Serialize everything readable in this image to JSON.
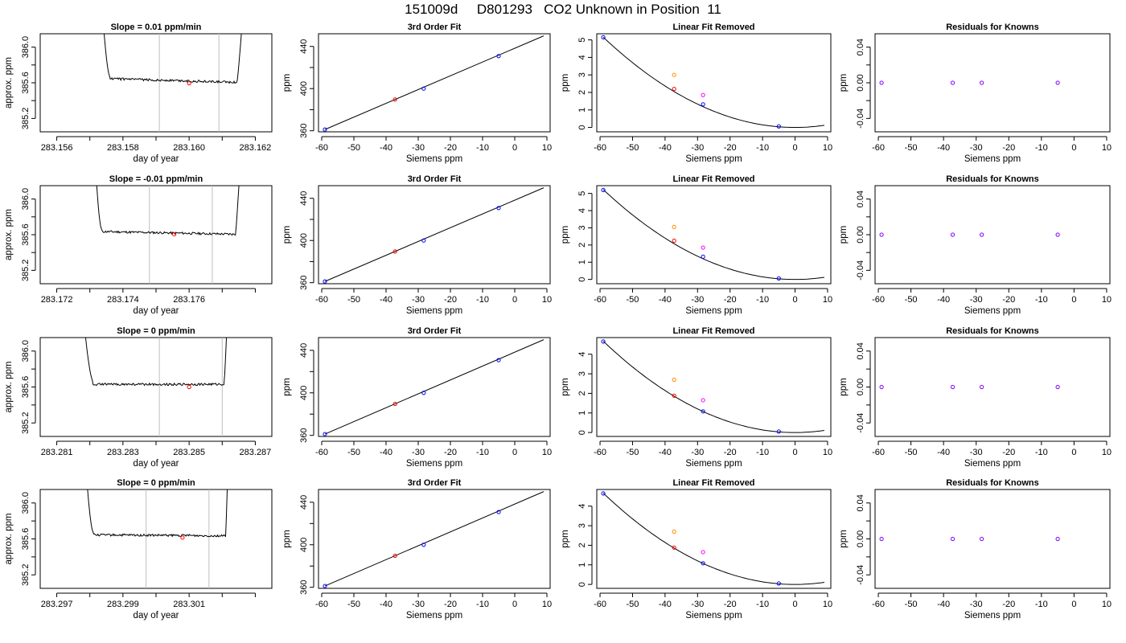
{
  "page_title": "151009d     D801293   CO2 Unknown in Position  11",
  "colors": {
    "trace": "#000000",
    "cut_lines": "#bebebe",
    "average_point": "#ff0000",
    "known_points": "#0000ff",
    "unknown_point": "#ff00ff",
    "raw_point": "#ff8c00",
    "residual_points": "#8000ff"
  },
  "chart_data": [
    {
      "type": "line",
      "panel": "trace-row-1",
      "title": "Slope =  0.01  ppm/min",
      "xlabel": "day of year",
      "ylabel": "approx. ppm",
      "xlim": [
        283.1555,
        283.1625
      ],
      "ylim": [
        385.05,
        386.15
      ],
      "xticks": [
        283.156,
        283.157,
        283.158,
        283.159,
        283.16,
        283.161,
        283.162
      ],
      "xtick_labels": [
        "283.156",
        "",
        "283.158",
        "",
        "283.160",
        "",
        "283.162"
      ],
      "yticks": [
        385.2,
        385.4,
        385.6,
        385.8,
        386.0
      ],
      "ytick_labels": [
        "385.2",
        "",
        "385.6",
        "",
        "386.0"
      ],
      "start": 283.1573,
      "end": 283.1617,
      "plateau_start": 283.1576,
      "plateau_end": 283.16145,
      "level": 385.615,
      "drift": -0.04,
      "cut_lines_x": [
        283.1591,
        283.1609
      ],
      "average_point": {
        "x": 283.16,
        "y": 385.595
      }
    },
    {
      "type": "line",
      "panel": "trace-row-2",
      "title": "Slope =  -0.01  ppm/min",
      "xlabel": "day of year",
      "ylabel": "approx. ppm",
      "xlim": [
        283.1715,
        283.1785
      ],
      "ylim": [
        385.05,
        386.15
      ],
      "xticks": [
        283.172,
        283.173,
        283.174,
        283.175,
        283.176,
        283.177,
        283.178
      ],
      "xtick_labels": [
        "283.172",
        "",
        "283.174",
        "",
        "283.176",
        "",
        ""
      ],
      "yticks": [
        385.2,
        385.4,
        385.6,
        385.8,
        386.0
      ],
      "ytick_labels": [
        "385.2",
        "",
        "385.6",
        "",
        "386.0"
      ],
      "start": 283.1731,
      "end": 283.1776,
      "plateau_start": 283.17335,
      "plateau_end": 283.1774,
      "level": 385.605,
      "drift": -0.03,
      "cut_lines_x": [
        283.1748,
        283.1767
      ],
      "average_point": {
        "x": 283.17555,
        "y": 385.605
      }
    },
    {
      "type": "line",
      "panel": "trace-row-3",
      "title": "Slope =  0  ppm/min",
      "xlabel": "day of year",
      "ylabel": "approx. ppm",
      "xlim": [
        283.2805,
        283.2875
      ],
      "ylim": [
        385.05,
        386.15
      ],
      "xticks": [
        283.281,
        283.282,
        283.283,
        283.284,
        283.285,
        283.286,
        283.287
      ],
      "xtick_labels": [
        "283.281",
        "",
        "283.283",
        "",
        "283.285",
        "",
        "283.287"
      ],
      "yticks": [
        385.2,
        385.4,
        385.6,
        385.8,
        386.0
      ],
      "ytick_labels": [
        "385.2",
        "",
        "385.6",
        "",
        "386.0"
      ],
      "start": 283.2817,
      "end": 283.2862,
      "plateau_start": 283.2821,
      "plateau_end": 283.28605,
      "level": 385.6,
      "drift": 0.0,
      "cut_lines_x": [
        283.2841,
        283.286
      ],
      "average_point": {
        "x": 283.285,
        "y": 385.6
      }
    },
    {
      "type": "line",
      "panel": "trace-row-4",
      "title": "Slope =  0  ppm/min",
      "xlabel": "day of year",
      "ylabel": "approx. ppm",
      "xlim": [
        283.2965,
        283.3035
      ],
      "ylim": [
        385.05,
        386.15
      ],
      "xticks": [
        283.297,
        283.298,
        283.299,
        283.3,
        283.301,
        283.302,
        283.303
      ],
      "xtick_labels": [
        "283.297",
        "",
        "283.299",
        "",
        "283.301",
        "",
        ""
      ],
      "yticks": [
        385.2,
        385.4,
        385.6,
        385.8,
        386.0
      ],
      "ytick_labels": [
        "385.2",
        "",
        "385.6",
        "",
        "386.0"
      ],
      "start": 283.2978,
      "end": 283.3022,
      "plateau_start": 283.2981,
      "plateau_end": 283.3021,
      "level": 385.615,
      "drift": -0.01,
      "cut_lines_x": [
        283.2997,
        283.3016
      ],
      "average_point": {
        "x": 283.3008,
        "y": 385.615
      }
    },
    {
      "type": "scatter",
      "panel": "fit-row-1",
      "title": "3rd Order Fit",
      "xlabel": "Siemens ppm",
      "ylabel": "ppm",
      "xlim": [
        -61,
        11
      ],
      "ylim": [
        359,
        452
      ],
      "xticks": [
        -60,
        -50,
        -40,
        -30,
        -20,
        -10,
        0,
        10
      ],
      "xtick_labels": [
        "-60",
        "-50",
        "-40",
        "-30",
        "-20",
        "-10",
        "0",
        "10"
      ],
      "yticks": [
        360,
        380,
        400,
        420,
        440
      ],
      "ytick_labels": [
        "360",
        "",
        "400",
        "",
        "440"
      ],
      "fit_line": {
        "x": [
          -59,
          9
        ],
        "y": [
          361.2,
          450.0
        ]
      },
      "known_points": [
        {
          "x": -59,
          "y": 361.2
        },
        {
          "x": -28.3,
          "y": 400.0
        },
        {
          "x": -5,
          "y": 430.8
        }
      ],
      "unknown_point": {
        "x": -37.2,
        "y": 389.7
      }
    },
    {
      "type": "scatter",
      "panel": "fit-row-2",
      "title": "3rd Order Fit",
      "xlabel": "Siemens ppm",
      "ylabel": "ppm",
      "xlim": [
        -61,
        11
      ],
      "ylim": [
        359,
        452
      ],
      "xticks": [
        -60,
        -50,
        -40,
        -30,
        -20,
        -10,
        0,
        10
      ],
      "xtick_labels": [
        "-60",
        "-50",
        "-40",
        "-30",
        "-20",
        "-10",
        "0",
        "10"
      ],
      "yticks": [
        360,
        380,
        400,
        420,
        440
      ],
      "ytick_labels": [
        "360",
        "",
        "400",
        "",
        "440"
      ],
      "fit_line": {
        "x": [
          -59,
          9
        ],
        "y": [
          361.2,
          450.0
        ]
      },
      "known_points": [
        {
          "x": -59,
          "y": 361.2
        },
        {
          "x": -28.3,
          "y": 400.0
        },
        {
          "x": -5,
          "y": 430.8
        }
      ],
      "unknown_point": {
        "x": -37.2,
        "y": 389.6
      }
    },
    {
      "type": "scatter",
      "panel": "fit-row-3",
      "title": "3rd Order Fit",
      "xlabel": "Siemens ppm",
      "ylabel": "ppm",
      "xlim": [
        -61,
        11
      ],
      "ylim": [
        359,
        452
      ],
      "xticks": [
        -60,
        -50,
        -40,
        -30,
        -20,
        -10,
        0,
        10
      ],
      "xtick_labels": [
        "-60",
        "-50",
        "-40",
        "-30",
        "-20",
        "-10",
        "0",
        "10"
      ],
      "yticks": [
        360,
        380,
        400,
        420,
        440
      ],
      "ytick_labels": [
        "360",
        "",
        "400",
        "",
        "440"
      ],
      "fit_line": {
        "x": [
          -59,
          9
        ],
        "y": [
          361.2,
          450.0
        ]
      },
      "known_points": [
        {
          "x": -59,
          "y": 361.2
        },
        {
          "x": -28.3,
          "y": 400.0
        },
        {
          "x": -5,
          "y": 430.8
        }
      ],
      "unknown_point": {
        "x": -37.2,
        "y": 389.6
      }
    },
    {
      "type": "scatter",
      "panel": "fit-row-4",
      "title": "3rd Order Fit",
      "xlabel": "Siemens ppm",
      "ylabel": "ppm",
      "xlim": [
        -61,
        11
      ],
      "ylim": [
        359,
        452
      ],
      "xticks": [
        -60,
        -50,
        -40,
        -30,
        -20,
        -10,
        0,
        10
      ],
      "xtick_labels": [
        "-60",
        "-50",
        "-40",
        "-30",
        "-20",
        "-10",
        "0",
        "10"
      ],
      "yticks": [
        360,
        380,
        400,
        420,
        440
      ],
      "ytick_labels": [
        "360",
        "",
        "400",
        "",
        "440"
      ],
      "fit_line": {
        "x": [
          -59,
          9
        ],
        "y": [
          361.2,
          450.0
        ]
      },
      "known_points": [
        {
          "x": -59,
          "y": 361.2
        },
        {
          "x": -28.3,
          "y": 400.0
        },
        {
          "x": -5,
          "y": 430.8
        }
      ],
      "unknown_point": {
        "x": -37.2,
        "y": 389.6
      }
    },
    {
      "type": "scatter",
      "panel": "linear-removed-row-1",
      "title": "Linear Fit Removed",
      "xlabel": "Siemens ppm",
      "ylabel": "ppm",
      "xlim": [
        -61,
        11
      ],
      "ylim": [
        -0.25,
        5.35
      ],
      "xticks": [
        -60,
        -50,
        -40,
        -30,
        -20,
        -10,
        0,
        10
      ],
      "xtick_labels": [
        "-60",
        "-50",
        "-40",
        "-30",
        "-20",
        "-10",
        "0",
        "10"
      ],
      "yticks": [
        0,
        1,
        2,
        3,
        4,
        5
      ],
      "ytick_labels": [
        "0",
        "1",
        "2",
        "3",
        "4",
        "5"
      ],
      "curve": {
        "vertex_x": 0,
        "vertex_y": 0.0,
        "a": 0.00148,
        "x_from": -59,
        "x_to": 9
      },
      "known_points": [
        {
          "x": -59,
          "y": 5.15
        },
        {
          "x": -28.3,
          "y": 1.32
        },
        {
          "x": -5,
          "y": 0.06
        }
      ],
      "unknown_point": {
        "x": -37.2,
        "y": 2.2
      },
      "raw_unknown": {
        "x": -37.2,
        "y": 3.0
      },
      "raw_unknown_2": {
        "x": -28.3,
        "y": 1.85
      }
    },
    {
      "type": "scatter",
      "panel": "linear-removed-row-2",
      "title": "Linear Fit Removed",
      "xlabel": "Siemens ppm",
      "ylabel": "ppm",
      "xlim": [
        -61,
        11
      ],
      "ylim": [
        -0.25,
        5.45
      ],
      "xticks": [
        -60,
        -50,
        -40,
        -30,
        -20,
        -10,
        0,
        10
      ],
      "xtick_labels": [
        "-60",
        "-50",
        "-40",
        "-30",
        "-20",
        "-10",
        "0",
        "10"
      ],
      "yticks": [
        0,
        1,
        2,
        3,
        4,
        5
      ],
      "ytick_labels": [
        "0",
        "1",
        "2",
        "3",
        "4",
        "5"
      ],
      "curve": {
        "vertex_x": 0,
        "vertex_y": 0.0,
        "a": 0.0015,
        "x_from": -59,
        "x_to": 9
      },
      "known_points": [
        {
          "x": -59,
          "y": 5.2
        },
        {
          "x": -28.3,
          "y": 1.32
        },
        {
          "x": -5,
          "y": 0.06
        }
      ],
      "unknown_point": {
        "x": -37.2,
        "y": 2.25
      },
      "raw_unknown": {
        "x": -37.2,
        "y": 3.05
      },
      "raw_unknown_2": {
        "x": -28.3,
        "y": 1.85
      }
    },
    {
      "type": "scatter",
      "panel": "linear-removed-row-3",
      "title": "Linear Fit Removed",
      "xlabel": "Siemens ppm",
      "ylabel": "ppm",
      "xlim": [
        -61,
        11
      ],
      "ylim": [
        -0.2,
        4.85
      ],
      "xticks": [
        -60,
        -50,
        -40,
        -30,
        -20,
        -10,
        0,
        10
      ],
      "xtick_labels": [
        "-60",
        "-50",
        "-40",
        "-30",
        "-20",
        "-10",
        "0",
        "10"
      ],
      "yticks": [
        0,
        1,
        2,
        3,
        4
      ],
      "ytick_labels": [
        "0",
        "1",
        "2",
        "3",
        "4"
      ],
      "curve": {
        "vertex_x": 0,
        "vertex_y": 0.0,
        "a": 0.00134,
        "x_from": -59,
        "x_to": 9
      },
      "known_points": [
        {
          "x": -59,
          "y": 4.65
        },
        {
          "x": -28.3,
          "y": 1.08
        },
        {
          "x": -5,
          "y": 0.05
        }
      ],
      "unknown_point": {
        "x": -37.2,
        "y": 1.88
      },
      "raw_unknown": {
        "x": -37.2,
        "y": 2.7
      },
      "raw_unknown_2": {
        "x": -28.3,
        "y": 1.65
      }
    },
    {
      "type": "scatter",
      "panel": "linear-removed-row-4",
      "title": "Linear Fit Removed",
      "xlabel": "Siemens ppm",
      "ylabel": "ppm",
      "xlim": [
        -61,
        11
      ],
      "ylim": [
        -0.2,
        4.85
      ],
      "xticks": [
        -60,
        -50,
        -40,
        -30,
        -20,
        -10,
        0,
        10
      ],
      "xtick_labels": [
        "-60",
        "-50",
        "-40",
        "-30",
        "-20",
        "-10",
        "0",
        "10"
      ],
      "yticks": [
        0,
        1,
        2,
        3,
        4
      ],
      "ytick_labels": [
        "0",
        "1",
        "2",
        "3",
        "4"
      ],
      "curve": {
        "vertex_x": 0,
        "vertex_y": 0.0,
        "a": 0.00134,
        "x_from": -59,
        "x_to": 9
      },
      "known_points": [
        {
          "x": -59,
          "y": 4.65
        },
        {
          "x": -28.3,
          "y": 1.08
        },
        {
          "x": -5,
          "y": 0.05
        }
      ],
      "unknown_point": {
        "x": -37.2,
        "y": 1.88
      },
      "raw_unknown": {
        "x": -37.2,
        "y": 2.7
      },
      "raw_unknown_2": {
        "x": -28.3,
        "y": 1.65
      }
    },
    {
      "type": "scatter",
      "panel": "residuals-row-1",
      "title": "Residuals for Knowns",
      "xlabel": "Siemens ppm",
      "ylabel": "ppm",
      "xlim": [
        -61,
        11
      ],
      "ylim": [
        -0.055,
        0.055
      ],
      "xticks": [
        -60,
        -50,
        -40,
        -30,
        -20,
        -10,
        0,
        10
      ],
      "xtick_labels": [
        "-60",
        "-50",
        "-40",
        "-30",
        "-20",
        "-10",
        "0",
        "10"
      ],
      "yticks": [
        -0.04,
        -0.02,
        0.0,
        0.02,
        0.04
      ],
      "ytick_labels": [
        "-0.04",
        "",
        "0.00",
        "",
        "0.04"
      ],
      "points": [
        {
          "x": -59,
          "y": 0
        },
        {
          "x": -37.2,
          "y": 0
        },
        {
          "x": -28.3,
          "y": 0
        },
        {
          "x": -5,
          "y": 0
        }
      ]
    },
    {
      "type": "scatter",
      "panel": "residuals-row-2",
      "title": "Residuals for Knowns",
      "xlabel": "Siemens ppm",
      "ylabel": "ppm",
      "xlim": [
        -61,
        11
      ],
      "ylim": [
        -0.055,
        0.055
      ],
      "xticks": [
        -60,
        -50,
        -40,
        -30,
        -20,
        -10,
        0,
        10
      ],
      "xtick_labels": [
        "-60",
        "-50",
        "-40",
        "-30",
        "-20",
        "-10",
        "0",
        "10"
      ],
      "yticks": [
        -0.04,
        -0.02,
        0.0,
        0.02,
        0.04
      ],
      "ytick_labels": [
        "-0.04",
        "",
        "0.00",
        "",
        "0.04"
      ],
      "points": [
        {
          "x": -59,
          "y": 0
        },
        {
          "x": -37.2,
          "y": 0
        },
        {
          "x": -28.3,
          "y": 0
        },
        {
          "x": -5,
          "y": 0
        }
      ]
    },
    {
      "type": "scatter",
      "panel": "residuals-row-3",
      "title": "Residuals for Knowns",
      "xlabel": "Siemens ppm",
      "ylabel": "ppm",
      "xlim": [
        -61,
        11
      ],
      "ylim": [
        -0.055,
        0.055
      ],
      "xticks": [
        -60,
        -50,
        -40,
        -30,
        -20,
        -10,
        0,
        10
      ],
      "xtick_labels": [
        "-60",
        "-50",
        "-40",
        "-30",
        "-20",
        "-10",
        "0",
        "10"
      ],
      "yticks": [
        -0.04,
        -0.02,
        0.0,
        0.02,
        0.04
      ],
      "ytick_labels": [
        "-0.04",
        "",
        "0.00",
        "",
        "0.04"
      ],
      "points": [
        {
          "x": -59,
          "y": 0
        },
        {
          "x": -37.2,
          "y": 0
        },
        {
          "x": -28.3,
          "y": 0
        },
        {
          "x": -5,
          "y": 0
        }
      ]
    },
    {
      "type": "scatter",
      "panel": "residuals-row-4",
      "title": "Residuals for Knowns",
      "xlabel": "Siemens ppm",
      "ylabel": "ppm",
      "xlim": [
        -61,
        11
      ],
      "ylim": [
        -0.055,
        0.055
      ],
      "xticks": [
        -60,
        -50,
        -40,
        -30,
        -20,
        -10,
        0,
        10
      ],
      "xtick_labels": [
        "-60",
        "-50",
        "-40",
        "-30",
        "-20",
        "-10",
        "0",
        "10"
      ],
      "yticks": [
        -0.04,
        -0.02,
        0.0,
        0.02,
        0.04
      ],
      "ytick_labels": [
        "-0.04",
        "",
        "0.00",
        "",
        "0.04"
      ],
      "points": [
        {
          "x": -59,
          "y": 0
        },
        {
          "x": -37.2,
          "y": 0
        },
        {
          "x": -28.3,
          "y": 0
        },
        {
          "x": -5,
          "y": 0
        }
      ]
    }
  ]
}
